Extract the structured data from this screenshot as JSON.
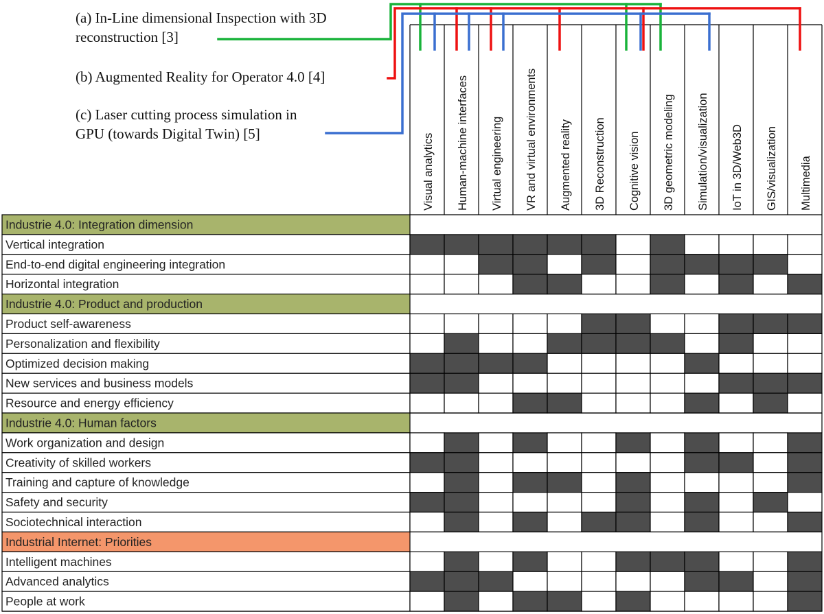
{
  "annotations": [
    {
      "id": "a",
      "lines": [
        "(a) In-Line dimensional Inspection with 3D",
        "reconstruction [3]"
      ],
      "color": "#19b33a",
      "columns": [
        0,
        6,
        7
      ]
    },
    {
      "id": "b",
      "lines": [
        "(b) Augmented Reality for Operator 4.0 [4]"
      ],
      "color": "#ee1111",
      "columns": [
        1,
        2,
        4,
        7,
        11
      ]
    },
    {
      "id": "c",
      "lines": [
        "(c) Laser cutting process simulation in",
        "GPU (towards Digital Twin) [5]"
      ],
      "color": "#3a6fd0",
      "columns": [
        0,
        1,
        2,
        6,
        8
      ]
    }
  ],
  "columns": [
    "Visual analytics",
    "Human-machine interfaces",
    "Virtual engineering",
    "VR and virtual environments",
    "Augmented reality",
    "3D Reconstruction",
    "Cognitive vision",
    "3D geometric modeling",
    "Simulation/visualization",
    "IoT in 3D/Web3D",
    "GIS/visualization",
    "Multimedia"
  ],
  "section_colors": {
    "green": "#a8b46c",
    "orange": "#f4966b"
  },
  "cell_fill": "#4d4d4d",
  "rows": [
    {
      "type": "section",
      "label": "Industrie 4.0: Integration dimension",
      "color": "green"
    },
    {
      "type": "item",
      "label": "Vertical integration",
      "cells": [
        1,
        1,
        1,
        1,
        1,
        1,
        0,
        1,
        0,
        0,
        0,
        0
      ]
    },
    {
      "type": "item",
      "label": "End-to-end digital engineering integration",
      "cells": [
        0,
        0,
        1,
        1,
        0,
        1,
        0,
        1,
        1,
        1,
        1,
        0
      ]
    },
    {
      "type": "item",
      "label": "Horizontal integration",
      "cells": [
        0,
        0,
        0,
        1,
        1,
        0,
        0,
        1,
        0,
        1,
        0,
        1
      ]
    },
    {
      "type": "section",
      "label": "Industrie 4.0: Product and production",
      "color": "green"
    },
    {
      "type": "item",
      "label": "Product self-awareness",
      "cells": [
        0,
        0,
        0,
        0,
        0,
        1,
        1,
        0,
        0,
        1,
        1,
        1
      ]
    },
    {
      "type": "item",
      "label": "Personalization and flexibility",
      "cells": [
        0,
        1,
        0,
        0,
        1,
        1,
        1,
        1,
        0,
        1,
        0,
        0
      ]
    },
    {
      "type": "item",
      "label": "Optimized decision making",
      "cells": [
        1,
        1,
        1,
        1,
        0,
        0,
        0,
        0,
        1,
        0,
        0,
        0
      ]
    },
    {
      "type": "item",
      "label": "New services and business models",
      "cells": [
        1,
        1,
        0,
        0,
        0,
        0,
        0,
        0,
        0,
        1,
        1,
        1
      ]
    },
    {
      "type": "item",
      "label": "Resource and energy efficiency",
      "cells": [
        0,
        0,
        0,
        1,
        1,
        0,
        0,
        0,
        1,
        0,
        1,
        0
      ]
    },
    {
      "type": "section",
      "label": "Industrie 4.0: Human factors",
      "color": "green"
    },
    {
      "type": "item",
      "label": "Work organization and design",
      "cells": [
        0,
        1,
        0,
        1,
        0,
        0,
        1,
        0,
        1,
        0,
        0,
        1
      ]
    },
    {
      "type": "item",
      "label": "Creativity of skilled workers",
      "cells": [
        1,
        1,
        0,
        0,
        0,
        0,
        0,
        0,
        1,
        1,
        0,
        1
      ]
    },
    {
      "type": "item",
      "label": "Training and capture of knowledge",
      "cells": [
        0,
        1,
        0,
        1,
        1,
        0,
        1,
        0,
        0,
        0,
        0,
        1
      ]
    },
    {
      "type": "item",
      "label": "Safety and security",
      "cells": [
        1,
        1,
        0,
        0,
        0,
        0,
        1,
        0,
        1,
        0,
        1,
        0
      ]
    },
    {
      "type": "item",
      "label": "Sociotechnical interaction",
      "cells": [
        0,
        1,
        0,
        1,
        0,
        1,
        1,
        0,
        1,
        0,
        0,
        1
      ]
    },
    {
      "type": "section",
      "label": "Industrial Internet: Priorities",
      "color": "orange"
    },
    {
      "type": "item",
      "label": "Intelligent machines",
      "cells": [
        0,
        1,
        0,
        1,
        0,
        0,
        1,
        1,
        1,
        0,
        0,
        1
      ]
    },
    {
      "type": "item",
      "label": "Advanced analytics",
      "cells": [
        1,
        1,
        1,
        0,
        0,
        0,
        0,
        0,
        1,
        1,
        0,
        1
      ]
    },
    {
      "type": "item",
      "label": "People at work",
      "cells": [
        0,
        1,
        0,
        1,
        1,
        0,
        1,
        0,
        0,
        0,
        0,
        1
      ]
    }
  ]
}
